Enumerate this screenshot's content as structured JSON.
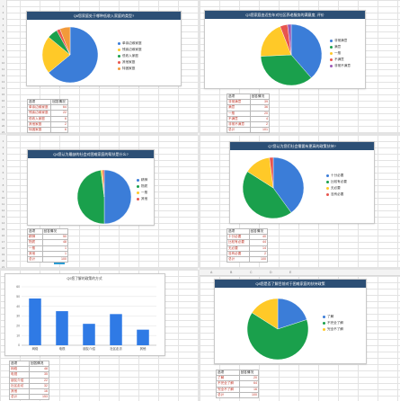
{
  "chart_data": [
    {
      "type": "pie",
      "title": "Q6您家庭处于哪种低收入家庭的类型?",
      "categories": [
        "单亲边缘家庭",
        "残疾边缘家庭",
        "低收入家庭",
        "其他家庭",
        "特困家庭"
      ],
      "values": [
        64,
        22,
        6,
        2,
        6
      ],
      "colors": [
        "#3b7dd8",
        "#ffc928",
        "#1aa04c",
        "#e8554e",
        "#f29a3a"
      ],
      "table": {
        "header": [
          "选项",
          "回答情况"
        ],
        "rows": [
          [
            "单亲边缘家庭",
            "64"
          ],
          [
            "残疾边缘家庭",
            "22"
          ],
          [
            "低收入家庭",
            "6"
          ],
          [
            "其他家庭",
            "2"
          ],
          [
            "特困家庭",
            "6"
          ],
          [
            "总计",
            "100"
          ]
        ]
      }
    },
    {
      "type": "pie",
      "title": "Q3您家庭由近些年对社区养老服务的满意度, 评价",
      "categories": [
        "非常满意",
        "满意",
        "一般",
        "不满意",
        "非常不满意"
      ],
      "values": [
        39,
        36,
        20,
        4,
        2
      ],
      "colors": [
        "#3b7dd8",
        "#1aa04c",
        "#ffc928",
        "#e8554e",
        "#9b59b6"
      ],
      "table": {
        "header": [
          "选项",
          "回答情况"
        ],
        "rows": [
          [
            "非常满意",
            "39"
          ],
          [
            "满意",
            "36"
          ],
          [
            "一般",
            "20"
          ],
          [
            "不满意",
            "4"
          ],
          [
            "非常不满意",
            "2"
          ],
          [
            "总计",
            "101"
          ]
        ]
      }
    },
    {
      "type": "pie",
      "title": "Q4您认为最缺的社会对困难家庭的帮扶是什么?",
      "categories": [
        "精神",
        "物质",
        "一般",
        "其他"
      ],
      "values": [
        50,
        48,
        1,
        1
      ],
      "colors": [
        "#3b7dd8",
        "#1aa04c",
        "#ffc928",
        "#e8554e"
      ],
      "table": {
        "header": [
          "选项",
          "回答情况"
        ],
        "rows": [
          [
            "精神",
            "50"
          ],
          [
            "物质",
            "48"
          ],
          [
            "一般",
            "1"
          ],
          [
            "其他",
            "1"
          ],
          [
            "总计",
            "100"
          ]
        ]
      }
    },
    {
      "type": "pie",
      "title": "Q7您认为您们社会需要有更高的政策扶持?",
      "categories": [
        "十分必要",
        "比较有必要",
        "无必要",
        "没有必要"
      ],
      "values": [
        40,
        44,
        14,
        2
      ],
      "colors": [
        "#3b7dd8",
        "#1aa04c",
        "#ffc928",
        "#e8554e"
      ],
      "table": {
        "header": [
          "选项",
          "回答情况"
        ],
        "rows": [
          [
            "十分必要",
            "40"
          ],
          [
            "比较有必要",
            "44"
          ],
          [
            "无必要",
            "14"
          ],
          [
            "没有必要",
            "2"
          ],
          [
            "总计",
            "100"
          ]
        ]
      }
    },
    {
      "type": "bar",
      "title": "Q9您了解的政策的方式",
      "categories": [
        "网络",
        "电视",
        "朋友介绍",
        "社区走访",
        "其他"
      ],
      "values": [
        48,
        35,
        22,
        32,
        16
      ],
      "ylim": [
        0,
        60
      ],
      "yticks": [
        0,
        10,
        20,
        30,
        40,
        50,
        60
      ],
      "color": "#2f7ae5",
      "table": {
        "header": [
          "选项",
          "回答情况"
        ],
        "rows": [
          [
            "网络",
            "48"
          ],
          [
            "电视",
            "35"
          ],
          [
            "朋友介绍",
            "22"
          ],
          [
            "社区走访",
            "32"
          ],
          [
            "其他",
            "16"
          ],
          [
            "总计",
            "153"
          ]
        ]
      }
    },
    {
      "type": "pie",
      "title": "Q8您是否了解目前对于困难家庭的扶持政策",
      "categories": [
        "了解",
        "不完全了解",
        "完全不了解"
      ],
      "values": [
        20,
        64,
        16
      ],
      "colors": [
        "#3b7dd8",
        "#1aa04c",
        "#ffc928"
      ],
      "table": {
        "header": [
          "选项",
          "回答情况"
        ],
        "rows": [
          [
            "了解",
            "20"
          ],
          [
            "不完全了解",
            "64"
          ],
          [
            "完全不了解",
            "16"
          ],
          [
            "总计",
            "100"
          ]
        ]
      }
    }
  ],
  "col_letters": [
    "A",
    "B",
    "C",
    "D",
    "E"
  ]
}
